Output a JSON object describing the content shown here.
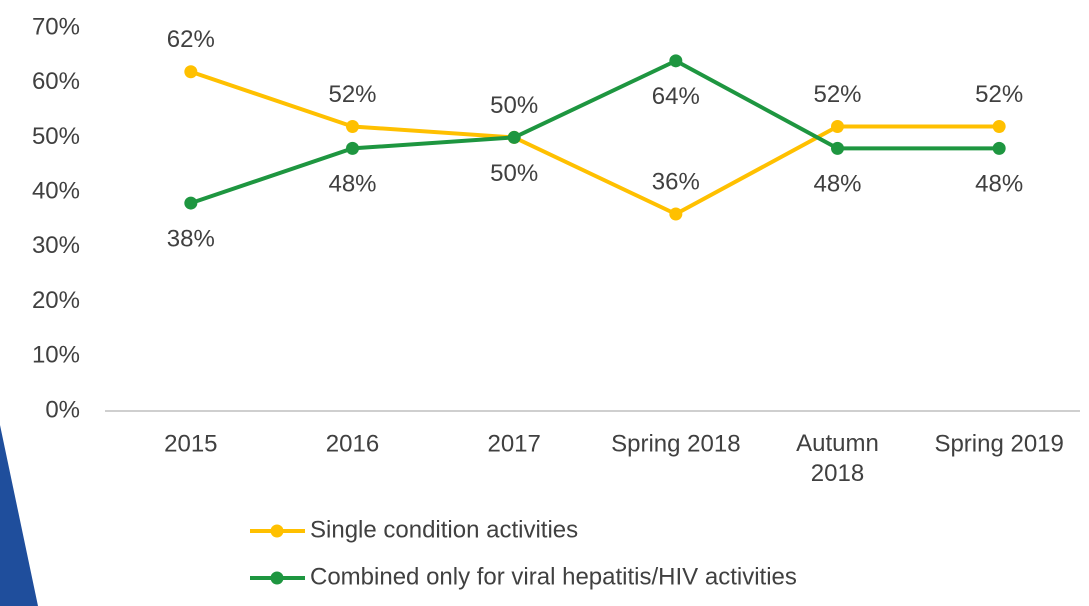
{
  "chart_data": {
    "type": "line",
    "categories": [
      "2015",
      "2016",
      "2017",
      "Spring 2018",
      "Autumn 2018",
      "Spring 2019"
    ],
    "series": [
      {
        "name": "Single condition activities",
        "color": "#FFC000",
        "values": [
          62,
          52,
          50,
          36,
          52,
          52
        ],
        "value_labels": [
          "62%",
          "52%",
          "50%",
          "36%",
          "52%",
          "52%"
        ]
      },
      {
        "name": "Combined only for viral hepatitis/HIV activities",
        "color": "#1E9640",
        "values": [
          38,
          48,
          50,
          64,
          48,
          48
        ],
        "value_labels": [
          "38%",
          "48%",
          "50%",
          "64%",
          "48%",
          "48%"
        ]
      }
    ],
    "ylim": [
      0,
      70
    ],
    "yticks": [
      {
        "value": 0,
        "label": "0%"
      },
      {
        "value": 10,
        "label": "10%"
      },
      {
        "value": 20,
        "label": "20%"
      },
      {
        "value": 30,
        "label": "30%"
      },
      {
        "value": 40,
        "label": "40%"
      },
      {
        "value": 50,
        "label": "50%"
      },
      {
        "value": 60,
        "label": "60%"
      },
      {
        "value": 70,
        "label": "70%"
      }
    ],
    "grid": false,
    "legend": "bottom"
  }
}
